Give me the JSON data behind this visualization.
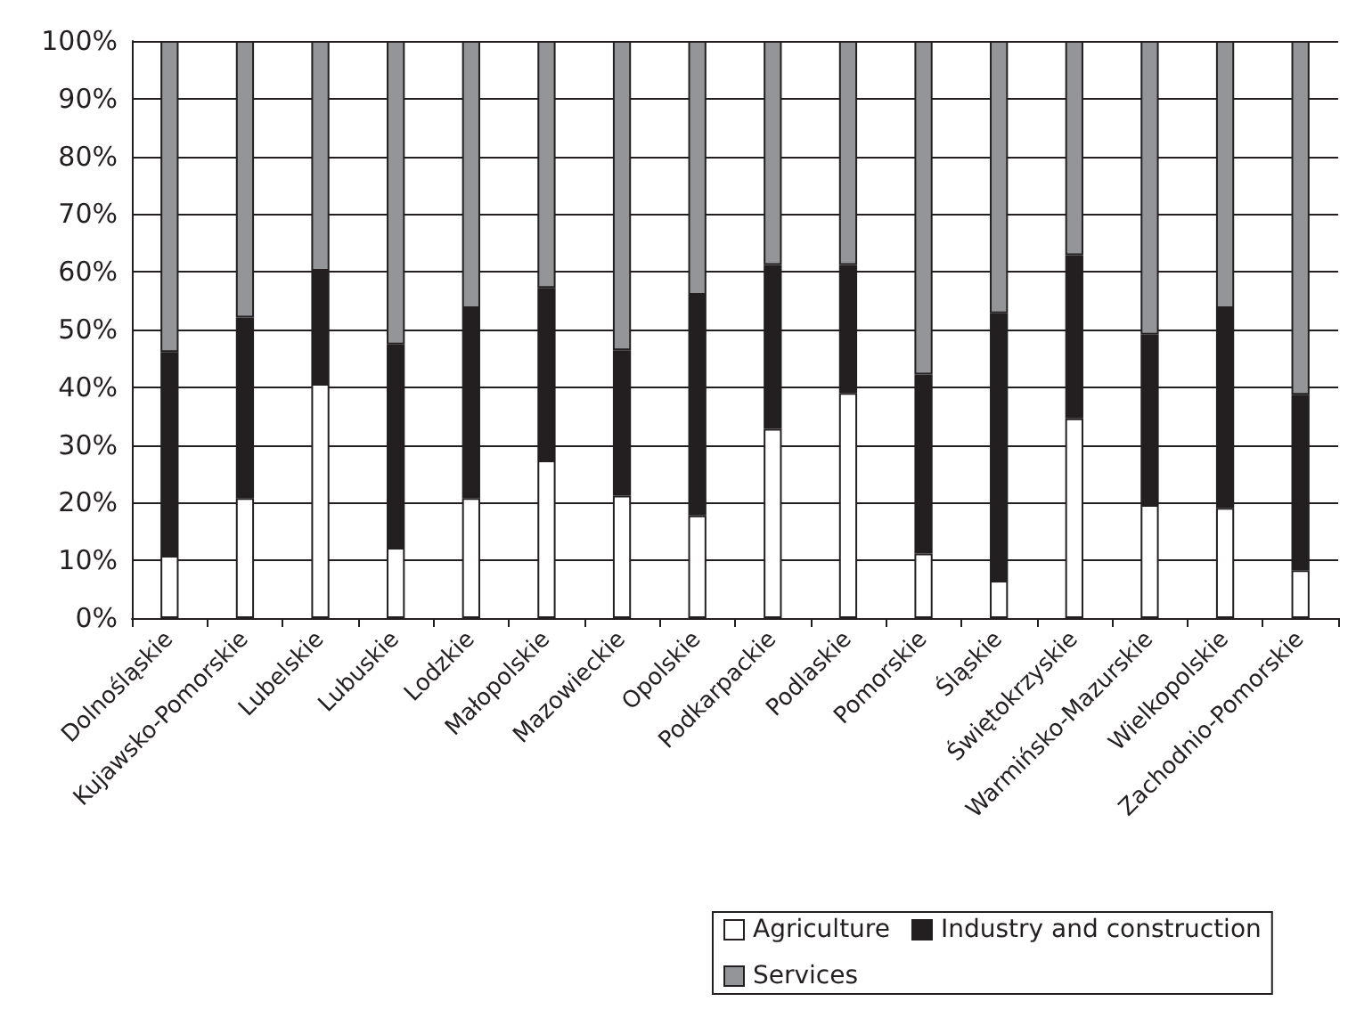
{
  "chart_data": {
    "type": "bar",
    "stacked": true,
    "categories": [
      "Dolnośląskie",
      "Kujawsko-Pomorskie",
      "Lubelskie",
      "Lubuskie",
      "Lodzkie",
      "Małopolskie",
      "Mazowieckie",
      "Opolskie",
      "Podkarpackie",
      "Podlaskie",
      "Pomorskie",
      "Śląskie",
      "Świętokrzyskie",
      "Warmińsko-Mazurskie",
      "Wielkopolskie",
      "Zachodnio-Pomorskie"
    ],
    "series": [
      {
        "name": "Agriculture",
        "color": "#ffffff",
        "values": [
          10.8,
          20.8,
          40.6,
          12.2,
          20.8,
          27.3,
          21.2,
          17.8,
          32.8,
          39.0,
          11.2,
          6.5,
          34.6,
          19.6,
          19.1,
          8.3
        ]
      },
      {
        "name": "Industry and construction",
        "color": "#231f20",
        "values": [
          35.3,
          31.3,
          19.6,
          35.2,
          32.9,
          29.9,
          25.2,
          38.2,
          28.4,
          22.2,
          31.0,
          46.3,
          28.3,
          29.5,
          34.6,
          30.4
        ]
      },
      {
        "name": "Services",
        "color": "#939598",
        "values": [
          53.9,
          47.9,
          39.8,
          52.6,
          46.3,
          42.8,
          53.6,
          44.0,
          38.8,
          38.8,
          57.8,
          47.2,
          37.1,
          50.9,
          46.3,
          61.3
        ]
      }
    ],
    "ylim": [
      0,
      100
    ],
    "yticks": [
      {
        "value": 0,
        "label": "0%"
      },
      {
        "value": 10,
        "label": "10%"
      },
      {
        "value": 20,
        "label": "20%"
      },
      {
        "value": 30,
        "label": "30%"
      },
      {
        "value": 40,
        "label": "40%"
      },
      {
        "value": 50,
        "label": "50%"
      },
      {
        "value": 60,
        "label": "60%"
      },
      {
        "value": 70,
        "label": "70%"
      },
      {
        "value": 80,
        "label": "80%"
      },
      {
        "value": 90,
        "label": "90%"
      },
      {
        "value": 100,
        "label": "100%"
      }
    ],
    "grid": "y",
    "legend": "bottom"
  }
}
